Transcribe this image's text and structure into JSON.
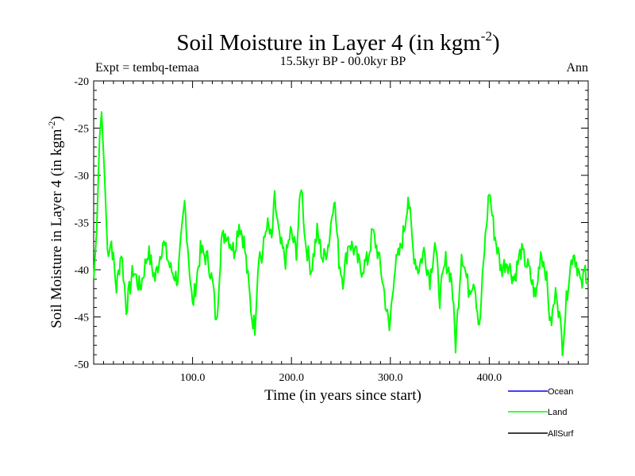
{
  "chart_data": {
    "type": "line",
    "title_main": "Soil Moisture in Layer 4 (in kgm",
    "title_sup": "-2",
    "title_close": ")",
    "subtitle": "15.5kyr BP - 00.0kyr BP",
    "expt_label": "Expt = tembq-temaa",
    "season_label": "Ann",
    "xlabel": "Time (in years since start)",
    "ylabel_main": "Soil Moisture in Layer 4 (in kgm",
    "ylabel_sup": "-2",
    "ylabel_close": ")",
    "xlim": [
      0,
      500
    ],
    "ylim": [
      -50,
      -20
    ],
    "x_ticks": [
      100,
      200,
      300,
      400
    ],
    "x_tick_labels": [
      "100.0",
      "200.0",
      "300.0",
      "400.0"
    ],
    "y_ticks": [
      -20,
      -25,
      -30,
      -35,
      -40,
      -45,
      -50
    ],
    "y_tick_labels": [
      "-20",
      "-25",
      "-30",
      "-35",
      "-40",
      "-45",
      "-50"
    ],
    "legend_position": "bottom-right",
    "series": [
      {
        "name": "Ocean",
        "color": "#0000ff",
        "values": []
      },
      {
        "name": "Land",
        "color": "#00ff00",
        "keypoints": [
          [
            0,
            -41
          ],
          [
            3,
            -36
          ],
          [
            6,
            -26
          ],
          [
            8,
            -23.3
          ],
          [
            11,
            -30
          ],
          [
            14,
            -38
          ],
          [
            18,
            -37
          ],
          [
            23,
            -42
          ],
          [
            28,
            -38
          ],
          [
            33,
            -44
          ],
          [
            40,
            -40
          ],
          [
            47,
            -42
          ],
          [
            55,
            -38
          ],
          [
            62,
            -41
          ],
          [
            70,
            -37
          ],
          [
            78,
            -40
          ],
          [
            85,
            -41
          ],
          [
            92,
            -33
          ],
          [
            97,
            -40
          ],
          [
            100,
            -44
          ],
          [
            108,
            -38
          ],
          [
            116,
            -39
          ],
          [
            121,
            -42
          ],
          [
            124,
            -46
          ],
          [
            129,
            -37
          ],
          [
            134,
            -36
          ],
          [
            142,
            -38
          ],
          [
            147,
            -35
          ],
          [
            152,
            -37
          ],
          [
            160,
            -45
          ],
          [
            163,
            -46
          ],
          [
            167,
            -38
          ],
          [
            170,
            -39
          ],
          [
            175,
            -35
          ],
          [
            180,
            -37
          ],
          [
            183,
            -32.5
          ],
          [
            188,
            -37
          ],
          [
            194,
            -39
          ],
          [
            199,
            -36
          ],
          [
            205,
            -38
          ],
          [
            210,
            -30.8
          ],
          [
            214,
            -37
          ],
          [
            220,
            -40
          ],
          [
            226,
            -36
          ],
          [
            232,
            -39
          ],
          [
            238,
            -37
          ],
          [
            243,
            -32
          ],
          [
            248,
            -39
          ],
          [
            252,
            -41
          ],
          [
            258,
            -37
          ],
          [
            264,
            -38
          ],
          [
            270,
            -40
          ],
          [
            277,
            -39
          ],
          [
            282,
            -36
          ],
          [
            287,
            -38
          ],
          [
            292,
            -41
          ],
          [
            299,
            -46.5
          ],
          [
            304,
            -40
          ],
          [
            310,
            -38
          ],
          [
            315,
            -35
          ],
          [
            318,
            -32
          ],
          [
            323,
            -38
          ],
          [
            328,
            -40
          ],
          [
            334,
            -38
          ],
          [
            340,
            -41
          ],
          [
            345,
            -37
          ],
          [
            350,
            -43
          ],
          [
            356,
            -39
          ],
          [
            362,
            -41
          ],
          [
            366,
            -48
          ],
          [
            372,
            -38
          ],
          [
            379,
            -42
          ],
          [
            385,
            -41
          ],
          [
            390,
            -46.5
          ],
          [
            395,
            -38
          ],
          [
            400,
            -31.5
          ],
          [
            405,
            -36
          ],
          [
            412,
            -40
          ],
          [
            418,
            -39
          ],
          [
            425,
            -41
          ],
          [
            432,
            -38
          ],
          [
            440,
            -40
          ],
          [
            447,
            -43
          ],
          [
            452,
            -38
          ],
          [
            457,
            -40
          ],
          [
            462,
            -46
          ],
          [
            468,
            -42
          ],
          [
            474,
            -48
          ],
          [
            480,
            -41
          ],
          [
            485,
            -38
          ],
          [
            490,
            -40
          ],
          [
            493,
            -42
          ],
          [
            497,
            -40
          ],
          [
            500,
            -41
          ]
        ]
      },
      {
        "name": "AllSurf",
        "color": "#000000",
        "values": []
      }
    ]
  }
}
